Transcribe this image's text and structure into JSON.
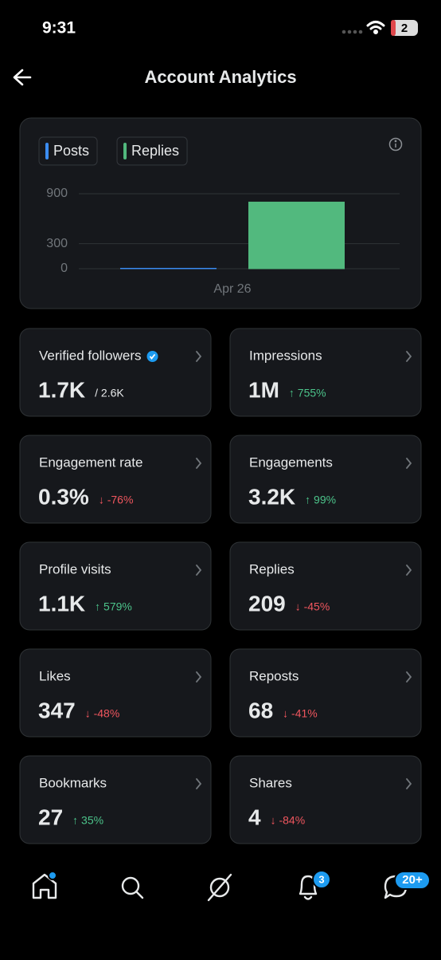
{
  "status_bar": {
    "time": "9:31",
    "battery": "2"
  },
  "header": {
    "title": "Account Analytics"
  },
  "chart_data": {
    "type": "bar",
    "categories": [
      "Apr 26"
    ],
    "series": [
      {
        "name": "Posts",
        "color": "#3b8cf0",
        "values": [
          5
        ]
      },
      {
        "name": "Replies",
        "color": "#52b97e",
        "values": [
          800
        ]
      }
    ],
    "ylim": [
      0,
      900
    ],
    "yticks": [
      0,
      300,
      900
    ],
    "grid": true
  },
  "cards": [
    {
      "label": "Verified followers",
      "value": "1.7K",
      "change": "/ 2.6K",
      "color": "#e7e9ea",
      "verified": true
    },
    {
      "label": "Impressions",
      "value": "1M",
      "change": "↑ 755%",
      "color": "#4cc38a"
    },
    {
      "label": "Engagement rate",
      "value": "0.3%",
      "change": "↓ -76%",
      "color": "#f0565e"
    },
    {
      "label": "Engagements",
      "value": "3.2K",
      "change": "↑ 99%",
      "color": "#4cc38a"
    },
    {
      "label": "Profile visits",
      "value": "1.1K",
      "change": "↑ 579%",
      "color": "#4cc38a"
    },
    {
      "label": "Replies",
      "value": "209",
      "change": "↓ -45%",
      "color": "#f0565e"
    },
    {
      "label": "Likes",
      "value": "347",
      "change": "↓ -48%",
      "color": "#f0565e"
    },
    {
      "label": "Reposts",
      "value": "68",
      "change": "↓ -41%",
      "color": "#f0565e"
    },
    {
      "label": "Bookmarks",
      "value": "27",
      "change": "↑ 35%",
      "color": "#4cc38a"
    },
    {
      "label": "Shares",
      "value": "4",
      "change": "↓ -84%",
      "color": "#f0565e"
    }
  ],
  "nav": {
    "notifications_badge": "3",
    "messages_badge": "20+"
  }
}
